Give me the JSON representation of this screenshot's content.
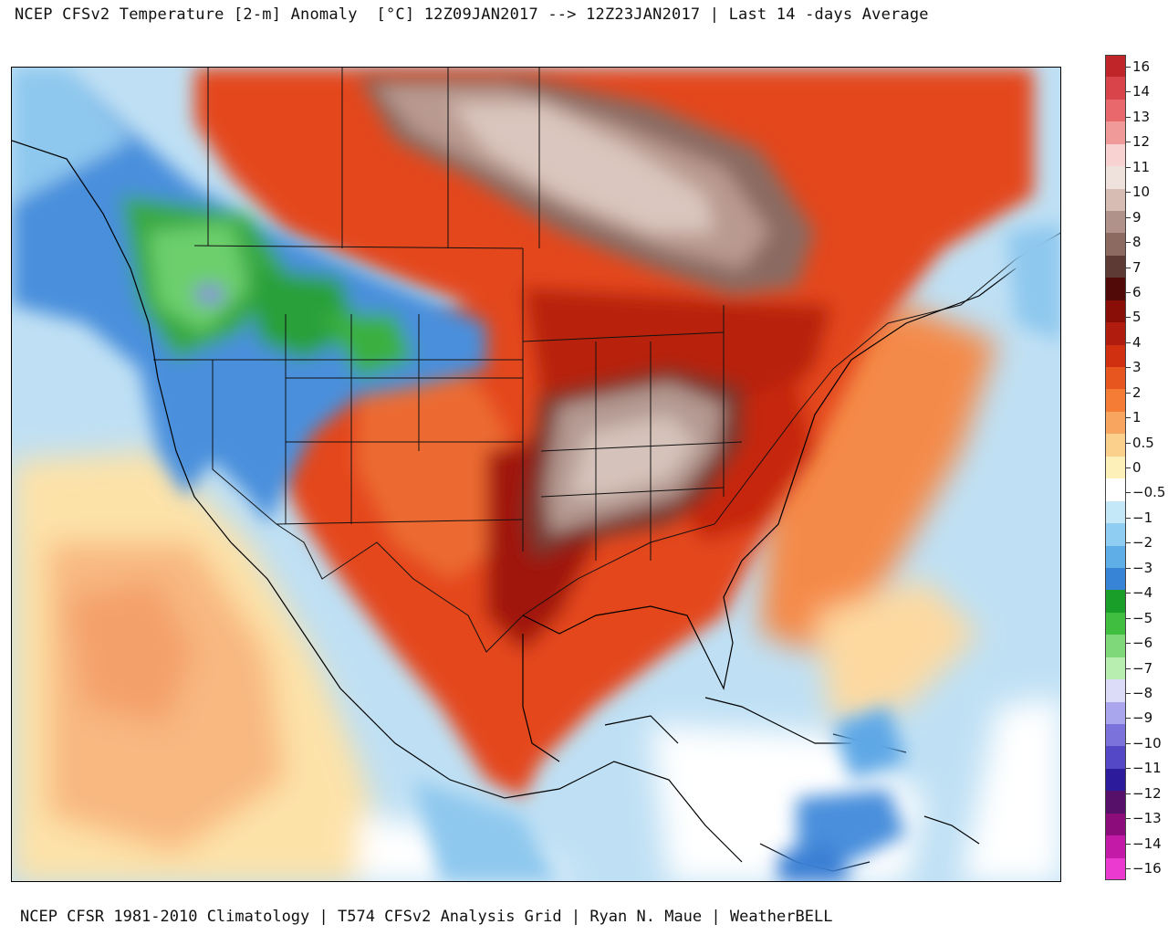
{
  "title": "NCEP CFSv2 Temperature [2-m] Anomaly  [°C] 12Z09JAN2017 --> 12Z23JAN2017 | Last 14 -days Average",
  "footer": "NCEP CFSR 1981-2010 Climatology | T574 CFSv2 Analysis Grid | Ryan N. Maue | WeatherBELL",
  "legend": {
    "bins": [
      {
        "color": "#c0252a"
      },
      {
        "color": "#d8444a"
      },
      {
        "color": "#e8686c"
      },
      {
        "color": "#f19a9a"
      },
      {
        "color": "#f8d2d0"
      },
      {
        "color": "#efe1dc"
      },
      {
        "color": "#d6bcb2"
      },
      {
        "color": "#b0928a"
      },
      {
        "color": "#8c6a62"
      },
      {
        "color": "#5e3a34"
      },
      {
        "color": "#520a08"
      },
      {
        "color": "#8a0e08"
      },
      {
        "color": "#b01c0e"
      },
      {
        "color": "#d13010"
      },
      {
        "color": "#e8561f"
      },
      {
        "color": "#f47c35"
      },
      {
        "color": "#f8a560"
      },
      {
        "color": "#fbcf8c"
      },
      {
        "color": "#fdf0b8"
      },
      {
        "color": "#ffffff"
      },
      {
        "color": "#c4e8f8"
      },
      {
        "color": "#8fcdf2"
      },
      {
        "color": "#5faee8"
      },
      {
        "color": "#3784d6"
      },
      {
        "color": "#1a9e2a"
      },
      {
        "color": "#3fbe3f"
      },
      {
        "color": "#7fd87a"
      },
      {
        "color": "#b8efb0"
      },
      {
        "color": "#dcdcf8"
      },
      {
        "color": "#aaa6ee"
      },
      {
        "color": "#7c72dc"
      },
      {
        "color": "#5448c6"
      },
      {
        "color": "#2c1c9c"
      },
      {
        "color": "#56106a"
      },
      {
        "color": "#8c0c7c"
      },
      {
        "color": "#c41aa8"
      },
      {
        "color": "#ea3ad0"
      }
    ],
    "labels": [
      {
        "text": "16",
        "y": 16
      },
      {
        "text": "14",
        "y": 14
      },
      {
        "text": "13",
        "y": 13
      },
      {
        "text": "12",
        "y": 12
      },
      {
        "text": "11",
        "y": 11
      },
      {
        "text": "10",
        "y": 10
      },
      {
        "text": "9",
        "y": 9
      },
      {
        "text": "8",
        "y": 8
      },
      {
        "text": "7",
        "y": 7
      },
      {
        "text": "6",
        "y": 6
      },
      {
        "text": "5",
        "y": 5
      },
      {
        "text": "4",
        "y": 4
      },
      {
        "text": "3",
        "y": 3
      },
      {
        "text": "2",
        "y": 2
      },
      {
        "text": "1",
        "y": 1
      },
      {
        "text": "0.5",
        "y": 0.5
      },
      {
        "text": "0",
        "y": 0
      },
      {
        "text": "−0.5",
        "y": -0.5
      },
      {
        "text": "−1",
        "y": -1
      },
      {
        "text": "−2",
        "y": -2
      },
      {
        "text": "−3",
        "y": -3
      },
      {
        "text": "−4",
        "y": -4
      },
      {
        "text": "−5",
        "y": -5
      },
      {
        "text": "−6",
        "y": -6
      },
      {
        "text": "−7",
        "y": -7
      },
      {
        "text": "−8",
        "y": -8
      },
      {
        "text": "−9",
        "y": -9
      },
      {
        "text": "−10",
        "y": -10
      },
      {
        "text": "−11",
        "y": -11
      },
      {
        "text": "−12",
        "y": -12
      },
      {
        "text": "−13",
        "y": -13
      },
      {
        "text": "−14",
        "y": -14
      },
      {
        "text": "−16",
        "y": -16
      }
    ]
  },
  "map": {
    "ocean_color": "#c8e4f4",
    "warm_anomaly_color": "#e04a18",
    "strong_warm_color": "#8a1408",
    "max_warm_color": "#c7aca4",
    "cold_anomaly_color": "#3a7fd4",
    "strong_cold_color": "#2ea836",
    "near_zero_color": "#fdf3cc"
  }
}
